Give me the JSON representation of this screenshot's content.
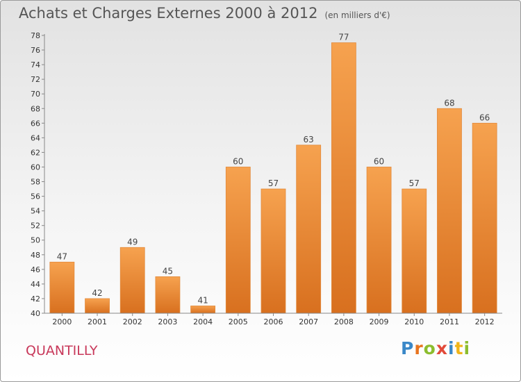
{
  "title": "Achats et Charges Externes 2000 à 2012",
  "subtitle": "(en milliers d'€)",
  "commune": "QUANTILLY",
  "logo_text": "Proxiti",
  "colors": {
    "bar_top": "#f6a24f",
    "bar_bottom": "#d8701f",
    "commune": "#c8385a"
  },
  "chart_data": {
    "type": "bar",
    "categories": [
      "2000",
      "2001",
      "2002",
      "2003",
      "2004",
      "2005",
      "2006",
      "2007",
      "2008",
      "2009",
      "2010",
      "2011",
      "2012"
    ],
    "values": [
      47,
      42,
      49,
      45,
      41,
      60,
      57,
      63,
      77,
      60,
      57,
      68,
      66
    ],
    "ylim": [
      40,
      78
    ],
    "yticks": [
      40,
      42,
      44,
      46,
      48,
      50,
      52,
      54,
      56,
      58,
      60,
      62,
      64,
      66,
      68,
      70,
      72,
      74,
      76,
      78
    ],
    "grid": false,
    "legend": "none"
  }
}
